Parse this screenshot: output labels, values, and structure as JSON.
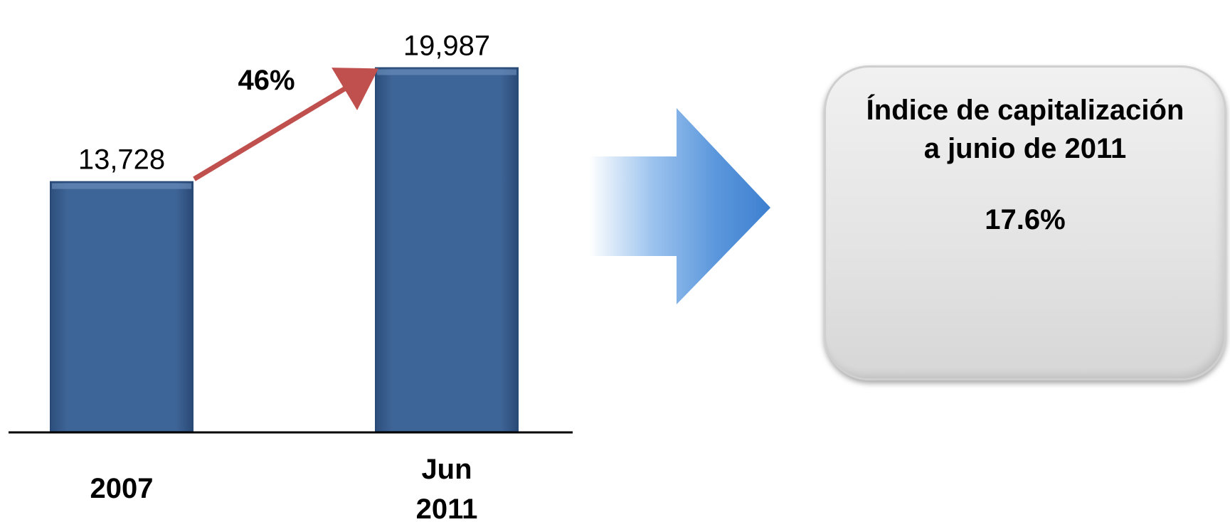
{
  "chart_data": {
    "type": "bar",
    "categories": [
      "2007",
      "Jun 2011"
    ],
    "category_lines": [
      [
        "2007"
      ],
      [
        "Jun",
        "2011"
      ]
    ],
    "values": [
      13728,
      19987
    ],
    "value_labels": [
      "13,728",
      "19,987"
    ],
    "ylim": [
      0,
      22000
    ],
    "grid": false,
    "annotation": {
      "text": "46%",
      "from_category": "2007",
      "to_category": "Jun 2011"
    },
    "colors": {
      "bar": "#3e6597",
      "arrow": "#c0504d",
      "big_arrow": "#4a86d4"
    }
  },
  "info_box": {
    "title": "Índice de capitalización a junio de 2011",
    "value": "17.6%"
  }
}
